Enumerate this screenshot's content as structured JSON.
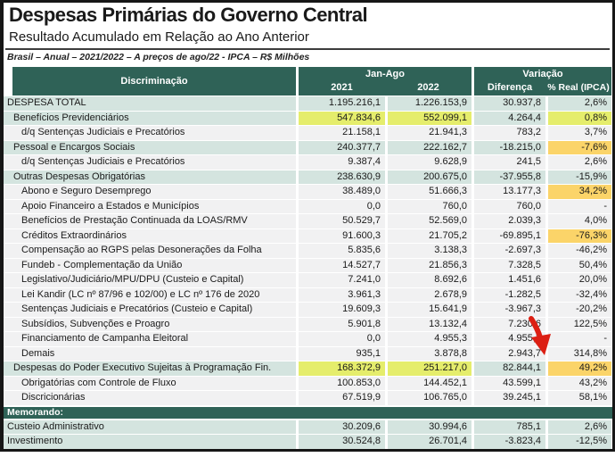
{
  "page": {
    "title": "Despesas Primárias do Governo Central",
    "subtitle": "Resultado Acumulado em Relação ao Ano Anterior",
    "source_note": "Brasil – Anual – 2021/2022 – A preços de ago/22 - IPCA – R$ Milhões"
  },
  "table": {
    "header": {
      "discrimination": "Discriminação",
      "period_group": "Jan-Ago",
      "variation_group": "Variação",
      "col_2021": "2021",
      "col_2022": "2022",
      "col_difference": "Diferença",
      "col_pct_real": "% Real (IPCA)"
    },
    "rows": [
      {
        "type": "data",
        "label": "DESPESA TOTAL",
        "indent": 0,
        "shade": "teal",
        "values": [
          "1.195.216,1",
          "1.226.153,9",
          "30.937,8",
          "2,6%"
        ],
        "hl": [
          null,
          null,
          null,
          null
        ]
      },
      {
        "type": "data",
        "label": "Benefícios Previdenciários",
        "indent": 1,
        "shade": "teal",
        "values": [
          "547.834,6",
          "552.099,1",
          "4.264,4",
          "0,8%"
        ],
        "hl": [
          "yellow",
          "yellow",
          null,
          "yellow"
        ]
      },
      {
        "type": "data",
        "label": "d/q Sentenças Judiciais e Precatórios",
        "indent": 2,
        "shade": "gray",
        "values": [
          "21.158,1",
          "21.941,3",
          "783,2",
          "3,7%"
        ],
        "hl": [
          null,
          null,
          null,
          null
        ]
      },
      {
        "type": "data",
        "label": "Pessoal e Encargos Sociais",
        "indent": 1,
        "shade": "teal",
        "values": [
          "240.377,7",
          "222.162,7",
          "-18.215,0",
          "-7,6%"
        ],
        "hl": [
          null,
          null,
          null,
          "orange"
        ]
      },
      {
        "type": "data",
        "label": "d/q Sentenças Judiciais e Precatórios",
        "indent": 2,
        "shade": "gray",
        "values": [
          "9.387,4",
          "9.628,9",
          "241,5",
          "2,6%"
        ],
        "hl": [
          null,
          null,
          null,
          null
        ]
      },
      {
        "type": "data",
        "label": "Outras Despesas Obrigatórias",
        "indent": 1,
        "shade": "teal",
        "values": [
          "238.630,9",
          "200.675,0",
          "-37.955,8",
          "-15,9%"
        ],
        "hl": [
          null,
          null,
          null,
          null
        ]
      },
      {
        "type": "data",
        "label": "Abono e Seguro Desemprego",
        "indent": 2,
        "shade": "gray",
        "values": [
          "38.489,0",
          "51.666,3",
          "13.177,3",
          "34,2%"
        ],
        "hl": [
          null,
          null,
          null,
          "orange"
        ]
      },
      {
        "type": "data",
        "label": "Apoio Financeiro a Estados e Municípios",
        "indent": 2,
        "shade": "gray",
        "values": [
          "0,0",
          "760,0",
          "760,0",
          "-"
        ],
        "hl": [
          null,
          null,
          null,
          null
        ]
      },
      {
        "type": "data",
        "label": "Benefícios de Prestação Continuada da LOAS/RMV",
        "indent": 2,
        "shade": "gray",
        "values": [
          "50.529,7",
          "52.569,0",
          "2.039,3",
          "4,0%"
        ],
        "hl": [
          null,
          null,
          null,
          null
        ]
      },
      {
        "type": "data",
        "label": "Créditos Extraordinários",
        "indent": 2,
        "shade": "gray",
        "values": [
          "91.600,3",
          "21.705,2",
          "-69.895,1",
          "-76,3%"
        ],
        "hl": [
          null,
          null,
          null,
          "orange"
        ]
      },
      {
        "type": "data",
        "label": "Compensação ao RGPS pelas Desonerações da Folha",
        "indent": 2,
        "shade": "gray",
        "values": [
          "5.835,6",
          "3.138,3",
          "-2.697,3",
          "-46,2%"
        ],
        "hl": [
          null,
          null,
          null,
          null
        ]
      },
      {
        "type": "data",
        "label": "Fundeb - Complementação da União",
        "indent": 2,
        "shade": "gray",
        "values": [
          "14.527,7",
          "21.856,3",
          "7.328,5",
          "50,4%"
        ],
        "hl": [
          null,
          null,
          null,
          null
        ]
      },
      {
        "type": "data",
        "label": "Legislativo/Judiciário/MPU/DPU (Custeio e Capital)",
        "indent": 2,
        "shade": "gray",
        "values": [
          "7.241,0",
          "8.692,6",
          "1.451,6",
          "20,0%"
        ],
        "hl": [
          null,
          null,
          null,
          null
        ]
      },
      {
        "type": "data",
        "label": "Lei Kandir (LC nº 87/96 e 102/00) e LC nº 176 de 2020",
        "indent": 2,
        "shade": "gray",
        "values": [
          "3.961,3",
          "2.678,9",
          "-1.282,5",
          "-32,4%"
        ],
        "hl": [
          null,
          null,
          null,
          null
        ]
      },
      {
        "type": "data",
        "label": "Sentenças Judiciais e Precatórios (Custeio e Capital)",
        "indent": 2,
        "shade": "gray",
        "values": [
          "19.609,3",
          "15.641,9",
          "-3.967,3",
          "-20,2%"
        ],
        "hl": [
          null,
          null,
          null,
          null
        ]
      },
      {
        "type": "data",
        "label": "Subsídios, Subvenções e Proagro",
        "indent": 2,
        "shade": "gray",
        "values": [
          "5.901,8",
          "13.132,4",
          "7.230,6",
          "122,5%"
        ],
        "hl": [
          null,
          null,
          null,
          null
        ]
      },
      {
        "type": "data",
        "label": "Financiamento de Campanha Eleitoral",
        "indent": 2,
        "shade": "gray",
        "values": [
          "0,0",
          "4.955,3",
          "4.955,3",
          "-"
        ],
        "hl": [
          null,
          null,
          null,
          null
        ]
      },
      {
        "type": "data",
        "label": "Demais",
        "indent": 2,
        "shade": "gray",
        "values": [
          "935,1",
          "3.878,8",
          "2.943,7",
          "314,8%"
        ],
        "hl": [
          null,
          null,
          null,
          null
        ]
      },
      {
        "type": "data",
        "label": "Despesas do Poder Executivo Sujeitas à Programação Fin.",
        "indent": 1,
        "shade": "teal",
        "values": [
          "168.372,9",
          "251.217,0",
          "82.844,1",
          "49,2%"
        ],
        "hl": [
          "yellow",
          "yellow",
          null,
          "orange"
        ]
      },
      {
        "type": "data",
        "label": "Obrigatórias com Controle de Fluxo",
        "indent": 2,
        "shade": "gray",
        "values": [
          "100.853,0",
          "144.452,1",
          "43.599,1",
          "43,2%"
        ],
        "hl": [
          null,
          null,
          null,
          null
        ]
      },
      {
        "type": "data",
        "label": "Discricionárias",
        "indent": 2,
        "shade": "gray",
        "values": [
          "67.519,9",
          "106.765,0",
          "39.245,1",
          "58,1%"
        ],
        "hl": [
          null,
          null,
          null,
          null
        ]
      },
      {
        "type": "band",
        "label": "Memorando:"
      },
      {
        "type": "data",
        "label": "Custeio Administrativo",
        "indent": 0,
        "shade": "teal",
        "values": [
          "30.209,6",
          "30.994,6",
          "785,1",
          "2,6%"
        ],
        "hl": [
          null,
          null,
          null,
          null
        ]
      },
      {
        "type": "data",
        "label": "Investimento",
        "indent": 0,
        "shade": "teal",
        "values": [
          "30.524,8",
          "26.701,4",
          "-3.823,4",
          "-12,5%"
        ],
        "hl": [
          null,
          null,
          null,
          null
        ]
      }
    ]
  },
  "annotations": {
    "red_arrow_points_to": "49,2%"
  },
  "colors": {
    "header_teal": "#2F6257",
    "row_teal": "#D4E4DF",
    "row_gray": "#F1F1F2",
    "hl_yellow": "#E5ED6C",
    "hl_orange": "#FBD469",
    "arrow_red": "#DC1F13",
    "frame": "#161616"
  }
}
